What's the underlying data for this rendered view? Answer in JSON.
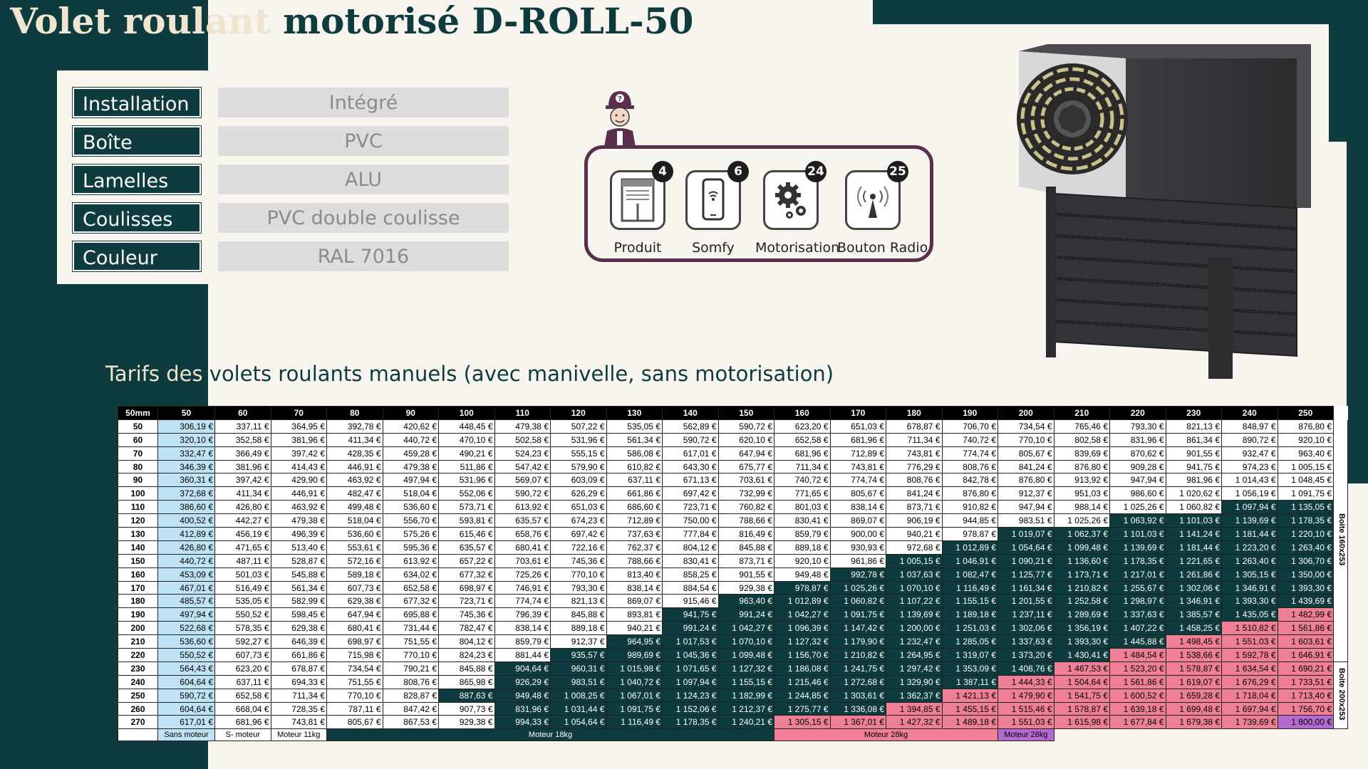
{
  "title": "Volet roulant motorisé D-ROLL-50",
  "specs": [
    {
      "label": "Installation",
      "value": "Intégré"
    },
    {
      "label": "Boîte",
      "value": "PVC"
    },
    {
      "label": "Lamelles",
      "value": "ALU"
    },
    {
      "label": "Coulisses",
      "value": "PVC double coulisse"
    },
    {
      "label": "Couleur",
      "value": "RAL 7016"
    }
  ],
  "options": [
    {
      "label": "Produit",
      "badge": "4",
      "icon": "window-blind-icon"
    },
    {
      "label": "Somfy",
      "badge": "6",
      "icon": "smartphone-icon"
    },
    {
      "label": "Motorisation",
      "badge": "24",
      "icon": "gears-icon"
    },
    {
      "label": "Bouton Radio",
      "badge": "25",
      "icon": "radio-antenna-icon"
    }
  ],
  "tarifs_title": "Tarifs des volets roulants manuels (avec manivelle, sans motorisation)",
  "table": {
    "corner": "50mm",
    "widths": [
      "50",
      "60",
      "70",
      "80",
      "90",
      "100",
      "110",
      "120",
      "130",
      "140",
      "150",
      "160",
      "170",
      "180",
      "190",
      "200",
      "210",
      "220",
      "230",
      "240",
      "250"
    ],
    "side_labels": [
      "Boite 160x253",
      "Boite 200x253"
    ],
    "rows": [
      {
        "h": "50",
        "c": [
          "306,19 €",
          "337,11 €",
          "364,95 €",
          "392,78 €",
          "420,62 €",
          "448,45 €",
          "479,38 €",
          "507,22 €",
          "535,05 €",
          "562,89 €",
          "590,72 €",
          "623,20 €",
          "651,03 €",
          "678,87 €",
          "706,70 €",
          "734,54 €",
          "765,46 €",
          "793,30 €",
          "821,13 €",
          "848,97 €",
          "876,80 €"
        ]
      },
      {
        "h": "60",
        "c": [
          "320,10 €",
          "352,58 €",
          "381,96 €",
          "411,34 €",
          "440,72 €",
          "470,10 €",
          "502,58 €",
          "531,96 €",
          "561,34 €",
          "590,72 €",
          "620,10 €",
          "652,58 €",
          "681,96 €",
          "711,34 €",
          "740,72 €",
          "770,10 €",
          "802,58 €",
          "831,96 €",
          "861,34 €",
          "890,72 €",
          "920,10 €"
        ]
      },
      {
        "h": "70",
        "c": [
          "332,47 €",
          "366,49 €",
          "397,42 €",
          "428,35 €",
          "459,28 €",
          "490,21 €",
          "524,23 €",
          "555,15 €",
          "586,08 €",
          "617,01 €",
          "647,94 €",
          "681,96 €",
          "712,89 €",
          "743,81 €",
          "774,74 €",
          "805,67 €",
          "839,69 €",
          "870,62 €",
          "901,55 €",
          "932,47 €",
          "963,40 €"
        ]
      },
      {
        "h": "80",
        "c": [
          "346,39 €",
          "381,96 €",
          "414,43 €",
          "446,91 €",
          "479,38 €",
          "511,86 €",
          "547,42 €",
          "579,90 €",
          "610,82 €",
          "643,30 €",
          "675,77 €",
          "711,34 €",
          "743,81 €",
          "776,29 €",
          "808,76 €",
          "841,24 €",
          "876,80 €",
          "909,28 €",
          "941,75 €",
          "974,23 €",
          "1 005,15 €"
        ]
      },
      {
        "h": "90",
        "c": [
          "360,31 €",
          "397,42 €",
          "429,90 €",
          "463,92 €",
          "497,94 €",
          "531,96 €",
          "569,07 €",
          "603,09 €",
          "637,11 €",
          "671,13 €",
          "703,61 €",
          "740,72 €",
          "774,74 €",
          "808,76 €",
          "842,78 €",
          "876,80 €",
          "913,92 €",
          "947,94 €",
          "981,96 €",
          "1 014,43 €",
          "1 048,45 €"
        ]
      },
      {
        "h": "100",
        "c": [
          "372,68 €",
          "411,34 €",
          "446,91 €",
          "482,47 €",
          "518,04 €",
          "552,06 €",
          "590,72 €",
          "626,29 €",
          "661,86 €",
          "697,42 €",
          "732,99 €",
          "771,65 €",
          "805,67 €",
          "841,24 €",
          "876,80 €",
          "912,37 €",
          "951,03 €",
          "986,60 €",
          "1 020,62 €",
          "1 056,19 €",
          "1 091,75 €"
        ]
      },
      {
        "h": "110",
        "c": [
          "386,60 €",
          "426,80 €",
          "463,92 €",
          "499,48 €",
          "536,60 €",
          "573,71 €",
          "613,92 €",
          "651,03 €",
          "686,60 €",
          "723,71 €",
          "760,82 €",
          "801,03 €",
          "838,14 €",
          "873,71 €",
          "910,82 €",
          "947,94 €",
          "988,14 €",
          "1 025,26 €",
          "1 060,82 €",
          "1 097,94 €",
          "1 135,05 €"
        ]
      },
      {
        "h": "120",
        "c": [
          "400,52 €",
          "442,27 €",
          "479,38 €",
          "518,04 €",
          "556,70 €",
          "593,81 €",
          "635,57 €",
          "674,23 €",
          "712,89 €",
          "750,00 €",
          "788,66 €",
          "830,41 €",
          "869,07 €",
          "906,19 €",
          "944,85 €",
          "983,51 €",
          "1 025,26 €",
          "1 063,92 €",
          "1 101,03 €",
          "1 139,69 €",
          "1 178,35 €"
        ]
      },
      {
        "h": "130",
        "c": [
          "412,89 €",
          "456,19 €",
          "496,39 €",
          "536,60 €",
          "575,26 €",
          "615,46 €",
          "658,76 €",
          "697,42 €",
          "737,63 €",
          "777,84 €",
          "816,49 €",
          "859,79 €",
          "900,00 €",
          "940,21 €",
          "978,87 €",
          "1 019,07 €",
          "1 062,37 €",
          "1 101,03 €",
          "1 141,24 €",
          "1 181,44 €",
          "1 220,10 €"
        ]
      },
      {
        "h": "140",
        "c": [
          "426,80 €",
          "471,65 €",
          "513,40 €",
          "553,61 €",
          "595,36 €",
          "635,57 €",
          "680,41 €",
          "722,16 €",
          "762,37 €",
          "804,12 €",
          "845,88 €",
          "889,18 €",
          "930,93 €",
          "972,68 €",
          "1 012,89 €",
          "1 054,64 €",
          "1 099,48 €",
          "1 139,69 €",
          "1 181,44 €",
          "1 223,20 €",
          "1 263,40 €"
        ]
      },
      {
        "h": "150",
        "c": [
          "440,72 €",
          "487,11 €",
          "528,87 €",
          "572,16 €",
          "613,92 €",
          "657,22 €",
          "703,61 €",
          "745,36 €",
          "788,66 €",
          "830,41 €",
          "873,71 €",
          "920,10 €",
          "961,86 €",
          "1 005,15 €",
          "1 046,91 €",
          "1 090,21 €",
          "1 136,60 €",
          "1 178,35 €",
          "1 221,65 €",
          "1 263,40 €",
          "1 306,70 €"
        ]
      },
      {
        "h": "160",
        "c": [
          "453,09 €",
          "501,03 €",
          "545,88 €",
          "589,18 €",
          "634,02 €",
          "677,32 €",
          "725,26 €",
          "770,10 €",
          "813,40 €",
          "858,25 €",
          "901,55 €",
          "949,48 €",
          "992,78 €",
          "1 037,63 €",
          "1 082,47 €",
          "1 125,77 €",
          "1 173,71 €",
          "1 217,01 €",
          "1 261,86 €",
          "1 305,15 €",
          "1 350,00 €"
        ]
      },
      {
        "h": "170",
        "c": [
          "467,01 €",
          "516,49 €",
          "561,34 €",
          "607,73 €",
          "652,58 €",
          "698,97 €",
          "746,91 €",
          "793,30 €",
          "838,14 €",
          "884,54 €",
          "929,38 €",
          "978,87 €",
          "1 025,26 €",
          "1 070,10 €",
          "1 116,49 €",
          "1 161,34 €",
          "1 210,82 €",
          "1 255,67 €",
          "1 302,06 €",
          "1 346,91 €",
          "1 393,30 €"
        ]
      },
      {
        "h": "180",
        "c": [
          "485,57 €",
          "535,05 €",
          "582,99 €",
          "629,38 €",
          "677,32 €",
          "723,71 €",
          "774,74 €",
          "821,13 €",
          "869,07 €",
          "915,46 €",
          "963,40 €",
          "1 012,89 €",
          "1 060,82 €",
          "1 107,22 €",
          "1 155,15 €",
          "1 201,55 €",
          "1 252,58 €",
          "1 298,97 €",
          "1 346,91 €",
          "1 393,30 €",
          "1 439,69 €"
        ]
      },
      {
        "h": "190",
        "c": [
          "497,94 €",
          "550,52 €",
          "598,45 €",
          "647,94 €",
          "695,88 €",
          "745,36 €",
          "796,39 €",
          "845,88 €",
          "893,81 €",
          "941,75 €",
          "991,24 €",
          "1 042,27 €",
          "1 091,75 €",
          "1 139,69 €",
          "1 189,18 €",
          "1 237,11 €",
          "1 289,69 €",
          "1 337,63 €",
          "1 385,57 €",
          "1 435,05 €",
          "1 482,99 €"
        ]
      },
      {
        "h": "200",
        "c": [
          "522,68 €",
          "578,35 €",
          "629,38 €",
          "680,41 €",
          "731,44 €",
          "782,47 €",
          "838,14 €",
          "889,18 €",
          "940,21 €",
          "991,24 €",
          "1 042,27 €",
          "1 096,39 €",
          "1 147,42 €",
          "1 200,00 €",
          "1 251,03 €",
          "1 302,06 €",
          "1 356,19 €",
          "1 407,22 €",
          "1 458,25 €",
          "1 510,82 €",
          "1 561,86 €"
        ]
      },
      {
        "h": "210",
        "c": [
          "536,60 €",
          "592,27 €",
          "646,39 €",
          "698,97 €",
          "751,55 €",
          "804,12 €",
          "859,79 €",
          "912,37 €",
          "964,95 €",
          "1 017,53 €",
          "1 070,10 €",
          "1 127,32 €",
          "1 179,90 €",
          "1 232,47 €",
          "1 285,05 €",
          "1 337,63 €",
          "1 393,30 €",
          "1 445,88 €",
          "1 498,45 €",
          "1 551,03 €",
          "1 603,61 €"
        ]
      },
      {
        "h": "220",
        "c": [
          "550,52 €",
          "607,73 €",
          "661,86 €",
          "715,98 €",
          "770,10 €",
          "824,23 €",
          "881,44 €",
          "935,57 €",
          "989,69 €",
          "1 045,36 €",
          "1 099,48 €",
          "1 156,70 €",
          "1 210,82 €",
          "1 264,95 €",
          "1 319,07 €",
          "1 373,20 €",
          "1 430,41 €",
          "1 484,54 €",
          "1 538,66 €",
          "1 592,78 €",
          "1 646,91 €"
        ]
      },
      {
        "h": "230",
        "c": [
          "564,43 €",
          "623,20 €",
          "678,87 €",
          "734,54 €",
          "790,21 €",
          "845,88 €",
          "904,64 €",
          "960,31 €",
          "1 015,98 €",
          "1 071,65 €",
          "1 127,32 €",
          "1 186,08 €",
          "1 241,75 €",
          "1 297,42 €",
          "1 353,09 €",
          "1 408,76 €",
          "1 467,53 €",
          "1 523,20 €",
          "1 578,87 €",
          "1 634,54 €",
          "1 690,21 €"
        ]
      },
      {
        "h": "240",
        "c": [
          "604,64 €",
          "637,11 €",
          "694,33 €",
          "751,55 €",
          "808,76 €",
          "865,98 €",
          "926,29 €",
          "983,51 €",
          "1 040,72 €",
          "1 097,94 €",
          "1 155,15 €",
          "1 215,46 €",
          "1 272,68 €",
          "1 329,90 €",
          "1 387,11 €",
          "1 444,33 €",
          "1 504,64 €",
          "1 561,86 €",
          "1 619,07 €",
          "1 676,29 €",
          "1 733,51 €"
        ]
      },
      {
        "h": "250",
        "c": [
          "590,72 €",
          "652,58 €",
          "711,34 €",
          "770,10 €",
          "828,87 €",
          "887,63 €",
          "949,48 €",
          "1 008,25 €",
          "1 067,01 €",
          "1 124,23 €",
          "1 182,99 €",
          "1 244,85 €",
          "1 303,61 €",
          "1 362,37 €",
          "1 421,13 €",
          "1 479,90 €",
          "1 541,75 €",
          "1 600,52 €",
          "1 659,28 €",
          "1 718,04 €",
          "1 713,40 €"
        ]
      },
      {
        "h": "260",
        "c": [
          "604,64 €",
          "668,04 €",
          "728,35 €",
          "787,11 €",
          "847,42 €",
          "907,73 €",
          "831,96 €",
          "1 031,44 €",
          "1 091,75 €",
          "1 152,06 €",
          "1 212,37 €",
          "1 275,77 €",
          "1 336,08 €",
          "1 394,85 €",
          "1 455,15 €",
          "1 515,46 €",
          "1 578,87 €",
          "1 639,18 €",
          "1 699,48 €",
          "1 697,94 €",
          "1 756,70 €"
        ]
      },
      {
        "h": "270",
        "c": [
          "617,01 €",
          "681,96 €",
          "743,81 €",
          "805,67 €",
          "867,53 €",
          "929,38 €",
          "994,33 €",
          "1 054,64 €",
          "1 116,49 €",
          "1 178,35 €",
          "1 240,21 €",
          "1 305,15 €",
          "1 367,01 €",
          "1 427,32 €",
          "1 489,18 €",
          "1 551,03 €",
          "1 615,98 €",
          "1 677,84 €",
          "1 679,38 €",
          "1 739,69 €",
          "1 800,00 €"
        ]
      }
    ],
    "dark_start": [
      21,
      21,
      21,
      21,
      21,
      21,
      19,
      17,
      15,
      14,
      13,
      12,
      11,
      10,
      9,
      9,
      8,
      7,
      6,
      6,
      5,
      6,
      6
    ],
    "pink_start": [
      21,
      21,
      21,
      21,
      21,
      21,
      21,
      21,
      21,
      21,
      21,
      21,
      21,
      21,
      20,
      19,
      18,
      17,
      16,
      15,
      14,
      13,
      11
    ],
    "footer": [
      {
        "label": "",
        "span": 1,
        "cls": "f-blank"
      },
      {
        "label": "Sans moteur",
        "span": 1,
        "cls": "f-sm"
      },
      {
        "label": "S- moteur",
        "span": 1,
        "cls": "f-w"
      },
      {
        "label": "Moteur 11kg",
        "span": 1,
        "cls": "f-w"
      },
      {
        "label": "Moteur 18kg",
        "span": 8,
        "cls": "f-d"
      },
      {
        "label": "Moteur 28kg",
        "span": 4,
        "cls": "f-p"
      },
      {
        "label": "Moteur 28kg",
        "span": 1,
        "cls": "f-v"
      }
    ]
  },
  "colors": {
    "primary_dark": "#0e3b3d",
    "cream": "#f8f5ef",
    "sans_moteur": "#bfe2f5",
    "moteur_28": "#ef7f95",
    "moteur_28_max": "#b56ad2",
    "option_frame": "#5a2f4c"
  }
}
